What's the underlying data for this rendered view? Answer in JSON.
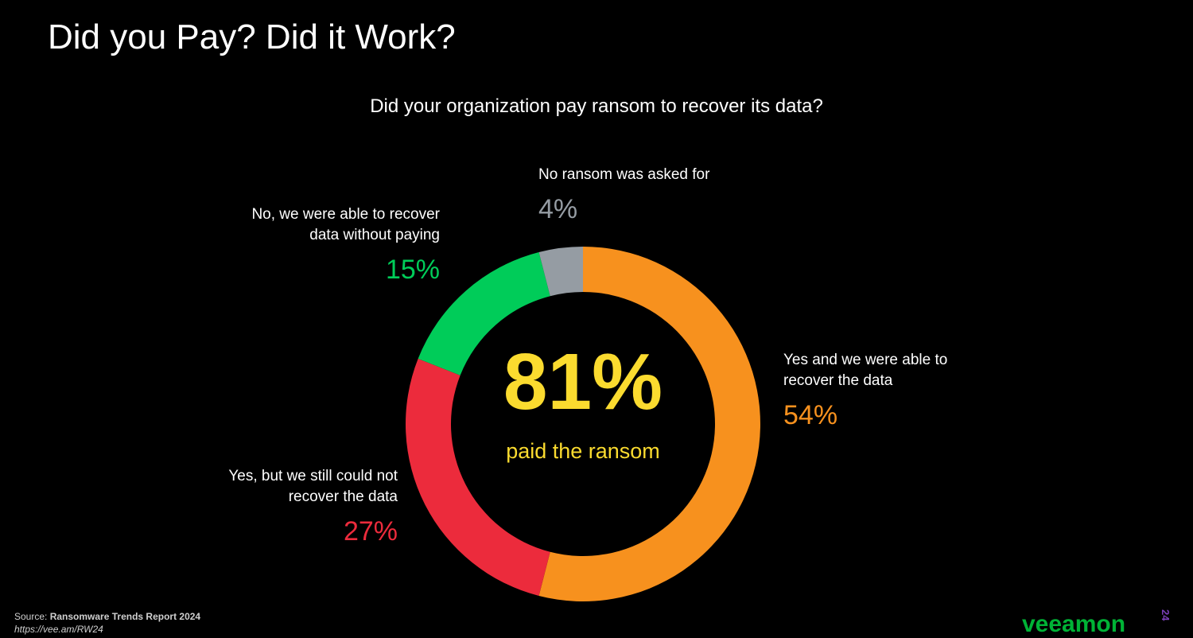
{
  "slide": {
    "title": "Did you Pay? Did it Work?"
  },
  "chart_data": {
    "type": "pie",
    "title": "Did your organization pay ransom to recover its data?",
    "series": [
      {
        "name": "",
        "values": [
          54,
          27,
          15,
          4
        ]
      }
    ],
    "categories": [
      "Yes and we were able to recover the data",
      "Yes, but we still could not recover the data",
      "No, we were able to recover data without paying",
      "No ransom was asked for"
    ],
    "colors": [
      "#F7911E",
      "#EC2B3C",
      "#00CC59",
      "#959CA3"
    ],
    "center": {
      "value": "81%",
      "label": "paid the ransom",
      "color": "#FBDB2F"
    },
    "labels": [
      {
        "line1": "Yes and we were able to",
        "line2": "recover the data",
        "pct": "54%"
      },
      {
        "line1": "Yes, but we still could not",
        "line2": "recover the data",
        "pct": "27%"
      },
      {
        "line1": "No, we were able to recover",
        "line2": "data without paying",
        "pct": "15%"
      },
      {
        "line1": "No ransom was asked for",
        "line2": "",
        "pct": "4%"
      }
    ]
  },
  "footer": {
    "source_prefix": "Source: ",
    "source_title": "Ransomware Trends Report 2024",
    "source_url": "https://vee.am/RW24",
    "logo_text": "veeamon",
    "logo_sup": "24"
  }
}
